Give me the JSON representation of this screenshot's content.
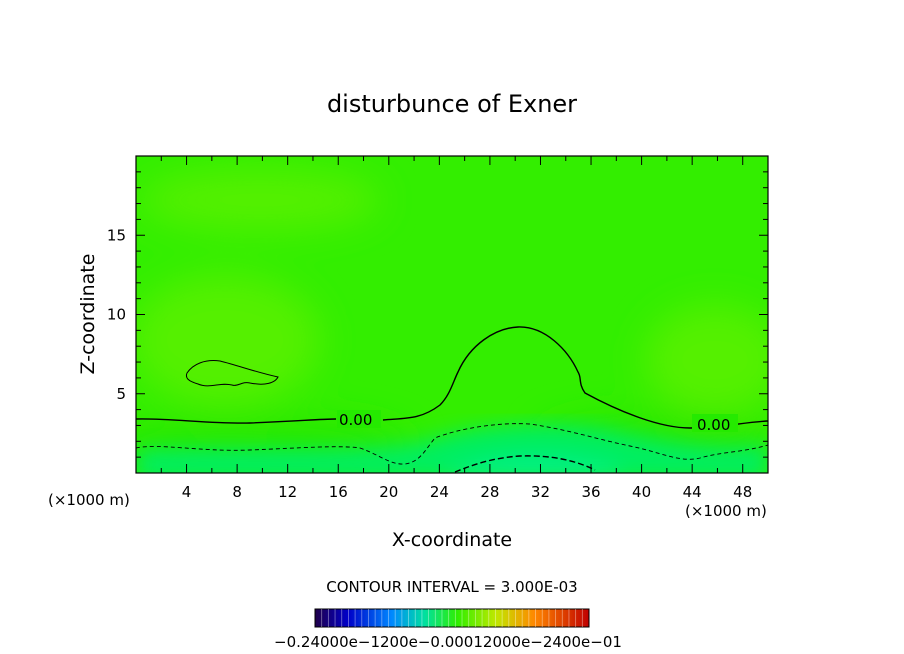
{
  "chart_data": {
    "type": "contour",
    "title": "disturbunce of Exner",
    "xlabel": "X-coordinate",
    "ylabel": "Z-coordinate",
    "x_unit_left": "(×1000 m)",
    "x_unit_right": "(×1000 m)",
    "xlim": [
      0,
      50
    ],
    "ylim": [
      0,
      20
    ],
    "x_ticks": [
      4,
      8,
      12,
      16,
      20,
      24,
      28,
      32,
      36,
      40,
      44,
      48
    ],
    "y_ticks": [
      5,
      10,
      15
    ],
    "contour_labels": [
      {
        "text": "0.00",
        "x": 16.8,
        "z": 3.4
      },
      {
        "text": "0.00",
        "x": 46.0,
        "z": 3.0
      }
    ],
    "contour_interval_text": "CONTOUR INTERVAL = 3.000E-03",
    "colorbar": {
      "tick_labels": [
        "−0.2400e−01",
        "−0.1200e−01",
        "0.0000",
        "0.1200e−01",
        "0.2400e−01"
      ],
      "displayed_text": "−0.24000e−1200e−0.00012000e−2400e−01"
    },
    "colors": {
      "background_field": "#33ee00",
      "high_field": "#55f000",
      "low_field": "#00f08a",
      "frame": "#000000"
    },
    "grid": false
  }
}
